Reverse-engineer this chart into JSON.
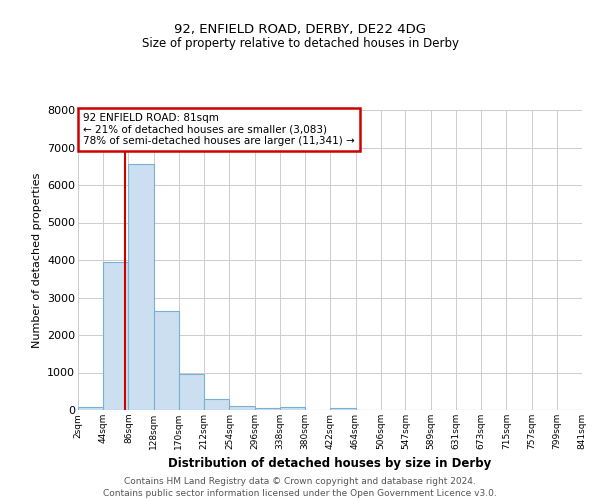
{
  "title1": "92, ENFIELD ROAD, DERBY, DE22 4DG",
  "title2": "Size of property relative to detached houses in Derby",
  "xlabel": "Distribution of detached houses by size in Derby",
  "ylabel": "Number of detached properties",
  "bin_edges": [
    2,
    44,
    86,
    128,
    170,
    212,
    254,
    296,
    338,
    380,
    422,
    464,
    506,
    547,
    589,
    631,
    673,
    715,
    757,
    799,
    841
  ],
  "bin_labels": [
    "2sqm",
    "44sqm",
    "86sqm",
    "128sqm",
    "170sqm",
    "212sqm",
    "254sqm",
    "296sqm",
    "338sqm",
    "380sqm",
    "422sqm",
    "464sqm",
    "506sqm",
    "547sqm",
    "589sqm",
    "631sqm",
    "673sqm",
    "715sqm",
    "757sqm",
    "799sqm",
    "841sqm"
  ],
  "bar_heights": [
    70,
    3950,
    6550,
    2650,
    950,
    300,
    120,
    60,
    80,
    0,
    60,
    0,
    0,
    0,
    0,
    0,
    0,
    0,
    0,
    0
  ],
  "bar_color": "#ccdff0",
  "bar_edge_color": "#7ab0d4",
  "property_size": 81,
  "property_line_color": "#cc0000",
  "annotation_line1": "92 ENFIELD ROAD: 81sqm",
  "annotation_line2": "← 21% of detached houses are smaller (3,083)",
  "annotation_line3": "78% of semi-detached houses are larger (11,341) →",
  "annotation_box_color": "#cc0000",
  "ylim": [
    0,
    8000
  ],
  "yticks": [
    0,
    1000,
    2000,
    3000,
    4000,
    5000,
    6000,
    7000,
    8000
  ],
  "footnote1": "Contains HM Land Registry data © Crown copyright and database right 2024.",
  "footnote2": "Contains public sector information licensed under the Open Government Licence v3.0.",
  "background_color": "#ffffff",
  "grid_color": "#cccccc",
  "title1_fontsize": 9.5,
  "title2_fontsize": 8.5
}
